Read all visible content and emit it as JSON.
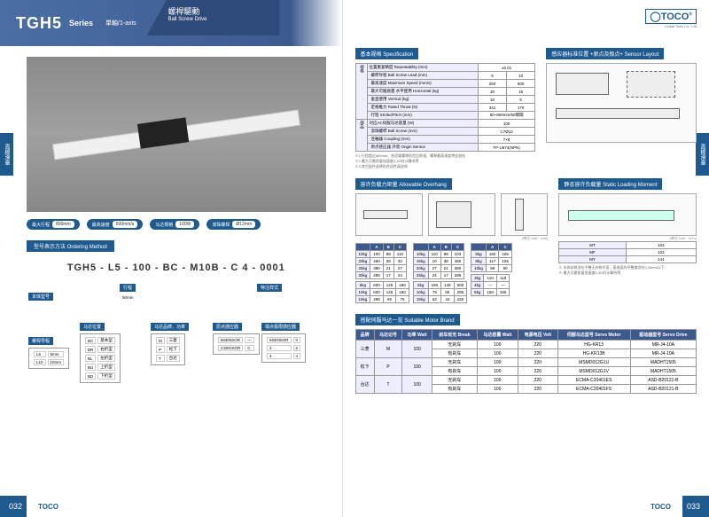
{
  "brand": "TOCO",
  "brand_sub": "Linear Tech Co., Ltd",
  "product": {
    "model": "TGH5",
    "series_label": "Series",
    "axis_sub": "単軸/1-axis",
    "drive_cn": "螺桿驅動",
    "drive_en": "Ball Screw Drive"
  },
  "side_tab_text": "直線滑臺",
  "spec_pills": [
    {
      "label": "最大行程",
      "value": "800mm"
    },
    {
      "label": "最高速度",
      "value": "500mm/s"
    },
    {
      "label": "马达規格",
      "value": "100W"
    },
    {
      "label": "滾珠螺桿",
      "value": "Ø12mm"
    }
  ],
  "ordering_label_cn": "型号表示方法",
  "ordering_label_en": "Ordering Method",
  "part_number": "TGH5 - L5 - 100 - BC - M10B - C 4 - 0001",
  "part_segments": {
    "base": {
      "label": "本体型号",
      "sub": "MODEL"
    },
    "lead": {
      "label": "行程",
      "sub": "STROKE"
    },
    "stroke_note": "50mm",
    "motor_pos": {
      "label": "马达位置",
      "sub": "MOTOR POS"
    },
    "screw": {
      "label": "螺桿导程",
      "sub": "LEAD"
    },
    "motor_brand": {
      "label": "马达品牌、功率",
      "sub": "MOTOR"
    },
    "origin": {
      "label": "原点感应器",
      "sub": "SENSOR"
    },
    "limit": {
      "label": "端点极限感应器",
      "sub": "LIMIT"
    },
    "special": {
      "label": "特注样式",
      "sub": "SPECIAL OPTION"
    }
  },
  "screw_opts": [
    [
      "L5",
      "5mm"
    ],
    [
      "L10",
      "10mm"
    ]
  ],
  "motor_pos_opts": [
    [
      "BC",
      "基本型"
    ],
    [
      "BR",
      "右折型"
    ],
    [
      "BL",
      "左折型"
    ],
    [
      "BU",
      "上折型"
    ],
    [
      "BD",
      "下折型"
    ]
  ],
  "motor_brand_opts": [
    [
      "M",
      "三菱"
    ],
    [
      "P",
      "松下"
    ],
    [
      "T",
      "台达"
    ]
  ],
  "origin_opts": [
    [
      "BSENSOR",
      "—"
    ],
    [
      "CSENSOR",
      "C"
    ]
  ],
  "limit_opts": [
    [
      "6SENSOR",
      "0"
    ],
    [
      "2",
      "2"
    ],
    [
      "4",
      "4"
    ]
  ],
  "right": {
    "spec_heading_cn": "基本规格",
    "spec_heading_en": "Specification",
    "sensor_heading_cn": "感应器标准位置 +原点及极点+",
    "sensor_heading_en": "Sensor Layout",
    "overhang_heading_cn": "容许负载力矩量",
    "overhang_heading_en": "Allowable Overhang",
    "static_heading_cn": "静态容许负载量",
    "static_heading_en": "Static Loading Moment",
    "motor_heading_cn": "搭配伺服马达一览",
    "motor_heading_en": "Suitable Motor Brand",
    "unit_note": "(单位 Unit：mm)",
    "unit_note_nm": "(单位 Unit：N·m)"
  },
  "spec_table": {
    "groups": [
      {
        "name": "规格",
        "rows": [
          {
            "label": "位置重复精度 Repeatability (mm)",
            "cols": [
              "±0.01"
            ]
          },
          {
            "label": "螺桿导程 Ball Screw Lead (mm)",
            "cols": [
              "5",
              "10"
            ]
          },
          {
            "label": "最高速度 Maximum Speed (mm/s)",
            "cols": [
              "250",
              "500"
            ]
          },
          {
            "label": "最大可搬质量 水平使用 Horizontal (kg)",
            "cols": [
              "30",
              "15"
            ]
          },
          {
            "label": "垂直使用 Vertical (kg)",
            "cols": [
              "10",
              "5"
            ]
          },
          {
            "label": "定格推力 Rated Thrust (N)",
            "cols": [
              "341",
              "170"
            ]
          },
          {
            "label": "行程 Stroke/Pitch (mm)",
            "cols": [
              "50~800mm/50間隔"
            ]
          }
        ]
      },
      {
        "name": "部品",
        "rows": [
          {
            "label": "对应AC伺服马达容量 (W)",
            "cols": [
              "100"
            ]
          },
          {
            "label": "滾珠螺桿 Ball Screw (mm)",
            "cols": [
              "C7Ø12"
            ]
          },
          {
            "label": "连軸器 Coupling (mm)",
            "cols": [
              "7×8"
            ]
          },
          {
            "label": "原点感应器 外装 Origin Sensor",
            "cols": [
              "FF-U674(NPN)"
            ]
          }
        ]
      }
    ],
    "footnotes": [
      "※1 行程超过600mm、依滾珠螺桿危险回转速、螺桿最高速度将会较低",
      "※2 最大可搬质量加速度0.3G时计算所得",
      "※3 其它配件选择的合适性请咨询"
    ]
  },
  "overhang_tables": {
    "horizontalA": {
      "head": [
        "",
        "A",
        "B",
        "C"
      ],
      "rows": [
        [
          "10kg",
          "100",
          "88",
          "110"
        ],
        [
          "20kg",
          "460",
          "38",
          "32"
        ],
        [
          "25kg",
          "380",
          "21",
          "27"
        ],
        [
          "30kg",
          "285",
          "17",
          "24"
        ]
      ]
    },
    "horizontalA2": {
      "rows": [
        [
          "10kg",
          "110",
          "88",
          "103"
        ],
        [
          "15kg",
          "10",
          "38",
          "460"
        ],
        [
          "20kg",
          "27",
          "21",
          "380"
        ],
        [
          "25kg",
          "24",
          "17",
          "285"
        ]
      ]
    },
    "wall": {
      "rows": [
        [
          "5kg",
          "600",
          "145",
          "180"
        ],
        [
          "10kg",
          "600",
          "145",
          "180"
        ],
        [
          "15kg",
          "295",
          "65",
          "75"
        ]
      ]
    },
    "wall2": {
      "rows": [
        [
          "5kg",
          "180",
          "145",
          "600"
        ],
        [
          "10kg",
          "75",
          "65",
          "295"
        ],
        [
          "15kg",
          "62",
          "42",
          "225"
        ]
      ]
    },
    "verticalB": {
      "head": [
        "",
        "A",
        "C"
      ],
      "rows": [
        [
          "5kg",
          "150",
          "155"
        ],
        [
          "8kg",
          "117",
          "105"
        ],
        [
          "10kg",
          "98",
          "90"
        ]
      ]
    },
    "verticalB2": {
      "rows": [
        [
          "3kg",
          "110",
          "118"
        ],
        [
          "4kg",
          "—",
          "—"
        ],
        [
          "5kg",
          "150",
          "155"
        ]
      ]
    },
    "col_head": [
      "新行程",
      "A",
      "B",
      "C"
    ]
  },
  "static_table": {
    "rows": [
      [
        "MT",
        "103"
      ],
      [
        "MF",
        "103"
      ],
      [
        "MY",
        "144"
      ]
    ],
    "note1": "※ 本体安装须在平整无杂物平面，基准面的平整度须在0.05mm以下",
    "note2": "※ 最大可搬质量加速度0.3G时计算所得"
  },
  "motor_table": {
    "columns": [
      "品牌",
      "马达记号",
      "功率 Watt",
      "刹车有无 Break",
      "马达容量 Watt",
      "电源电压 Volt",
      "伺服马达型号 Servo Motor",
      "驱动器型号 Servo Drive"
    ],
    "rows": [
      {
        "brand": "三菱",
        "sym": "M",
        "r": [
          [
            "无刹车",
            "100",
            "220",
            "HG-KR13",
            "MR-J4-10A"
          ],
          [
            "有刹车",
            "100",
            "220",
            "HG-KR13B",
            "MR-J4-10A"
          ]
        ]
      },
      {
        "brand": "松下",
        "sym": "P",
        "r": [
          [
            "无刹车",
            "100",
            "220",
            "MSMD012G1U",
            "MADHT1505"
          ],
          [
            "有刹车",
            "100",
            "220",
            "MSMD012G1V",
            "MADHT1505"
          ]
        ]
      },
      {
        "brand": "台达",
        "sym": "T",
        "r": [
          [
            "无刹车",
            "100",
            "220",
            "ECMA-C20401ES",
            "ASD-B20121-B"
          ],
          [
            "有刹车",
            "100",
            "220",
            "ECMA-C20401FS",
            "ASD-B20121-B"
          ]
        ]
      }
    ]
  },
  "page_left_num": "032",
  "page_right_num": "033",
  "colors": {
    "primary": "#1e5a8e",
    "header_grad": "#4a6fa5",
    "dark": "#2e4a7a"
  }
}
